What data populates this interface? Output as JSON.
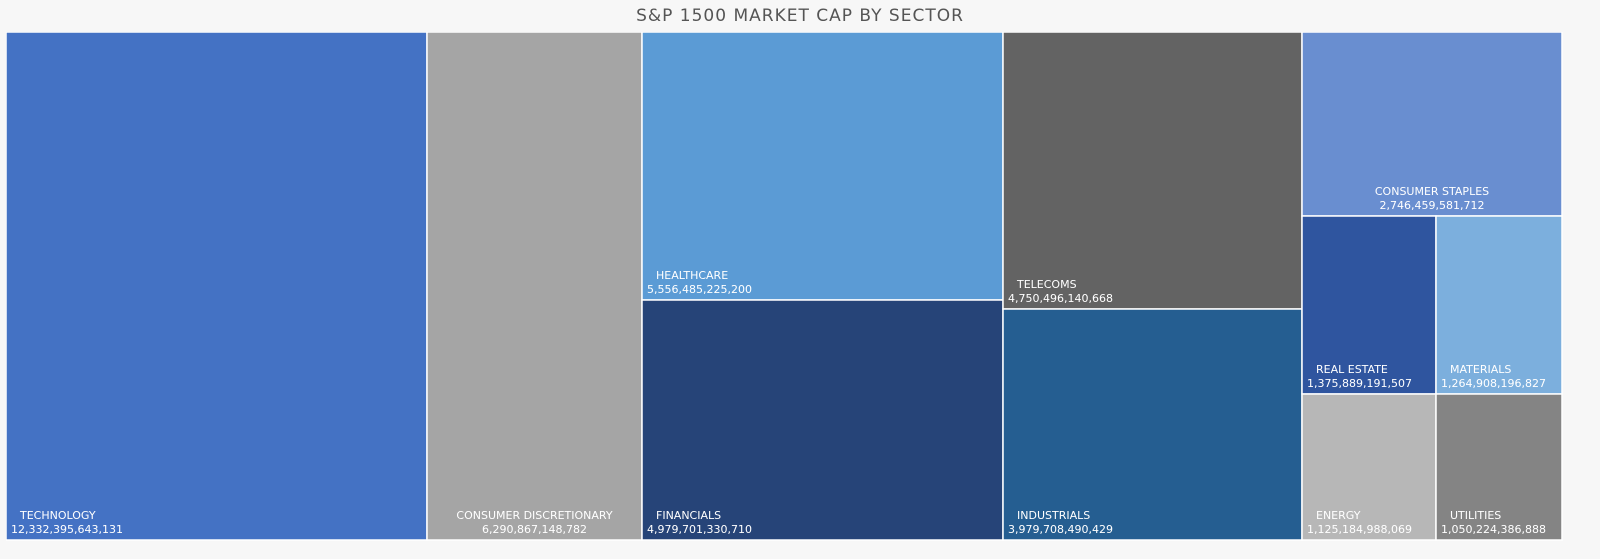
{
  "chart_data": {
    "type": "treemap",
    "title": "S&P 1500 MARKET CAP BY SECTOR",
    "items": [
      {
        "name": "TECHNOLOGY",
        "value": 12332395643131,
        "value_label": "12,332,395,643,131",
        "color": "#4472c4"
      },
      {
        "name": "CONSUMER DISCRETIONARY",
        "value": 6290867148782,
        "value_label": "6,290,867,148,782",
        "color": "#a5a5a5"
      },
      {
        "name": "HEALTHCARE",
        "value": 5556485225200,
        "value_label": "5,556,485,225,200",
        "color": "#5b9bd5"
      },
      {
        "name": "FINANCIALS",
        "value": 4979701330710,
        "value_label": "4,979,701,330,710",
        "color": "#264478"
      },
      {
        "name": "TELECOMS",
        "value": 4750496140668,
        "value_label": "4,750,496,140,668",
        "color": "#636363"
      },
      {
        "name": "INDUSTRIALS",
        "value": 3979708490429,
        "value_label": "3,979,708,490,429",
        "color": "#255e91"
      },
      {
        "name": "CONSUMER STAPLES",
        "value": 2746459581712,
        "value_label": "2,746,459,581,712",
        "color": "#698ed0"
      },
      {
        "name": "REAL ESTATE",
        "value": 1375889191507,
        "value_label": "1,375,889,191,507",
        "color": "#2f559f"
      },
      {
        "name": "MATERIALS",
        "value": 1264908196827,
        "value_label": "1,264,908,196,827",
        "color": "#7cafdd"
      },
      {
        "name": "ENERGY",
        "value": 1125184988069,
        "value_label": "1,125,184,988,069",
        "color": "#b7b7b7"
      },
      {
        "name": "UTILITIES",
        "value": 1050224386888,
        "value_label": "1,050,224,386,888",
        "color": "#848484"
      }
    ]
  }
}
